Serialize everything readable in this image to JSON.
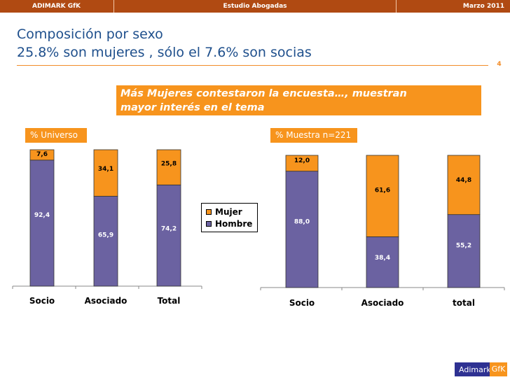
{
  "header": {
    "left": "ADIMARK GfK",
    "center": "Estudio Abogadas",
    "right": "Marzo  2011"
  },
  "title": {
    "line1": "Composición por sexo",
    "line2": "25.8% son mujeres , sólo el 7.6% son socias"
  },
  "page_number": "4",
  "callout": {
    "line1": "Más Mujeres contestaron la encuesta…, muestran",
    "line2": "mayor interés en el tema"
  },
  "colors": {
    "hombre": "#6b62a1",
    "mujer": "#f7941d",
    "header_bar": "#b04a12",
    "title": "#1e4f8c"
  },
  "chart_data": [
    {
      "type": "bar",
      "stacked": true,
      "title": "% Universo",
      "categories": [
        "Socio",
        "Asociado",
        "Total"
      ],
      "series": [
        {
          "name": "Hombre",
          "values": [
            92.4,
            65.9,
            74.2
          ],
          "labels": [
            "92,4",
            "65,9",
            "74,2"
          ]
        },
        {
          "name": "Mujer",
          "values": [
            7.6,
            34.1,
            25.8
          ],
          "labels": [
            "7,6",
            "34,1",
            "25,8"
          ]
        }
      ],
      "ylim": [
        0,
        100
      ]
    },
    {
      "type": "bar",
      "stacked": true,
      "title": "% Muestra n=221",
      "categories": [
        "Socio",
        "Asociado",
        "total"
      ],
      "series": [
        {
          "name": "Hombre",
          "values": [
            88.0,
            38.4,
            55.2
          ],
          "labels": [
            "88,0",
            "38,4",
            "55,2"
          ]
        },
        {
          "name": "Mujer",
          "values": [
            12.0,
            61.6,
            44.8
          ],
          "labels": [
            "12,0",
            "61,6",
            "44,8"
          ]
        }
      ],
      "ylim": [
        0,
        100
      ]
    }
  ],
  "legend": {
    "mujer": "Mujer",
    "hombre": "Hombre"
  },
  "logo": {
    "brand": "Adimark",
    "suffix": "GfK"
  }
}
